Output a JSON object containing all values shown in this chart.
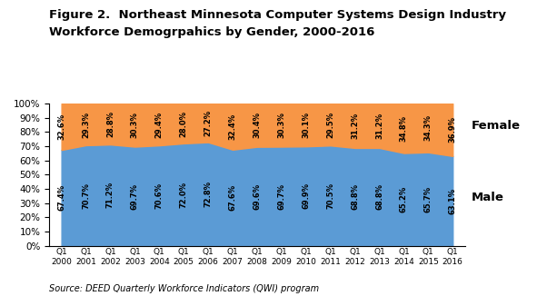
{
  "title_line1": "Figure 2.  Northeast Minnesota Computer Systems Design Industry",
  "title_line2": "Workforce Demogrpahics by Gender, 2000-2016",
  "source": "Source: DEED Quarterly Workforce Indicators (QWI) program",
  "years": [
    "Q1\n2000",
    "Q1\n2001",
    "Q1\n2002",
    "Q1\n2003",
    "Q1\n2004",
    "Q1\n2005",
    "Q1\n2006",
    "Q1\n2007",
    "Q1\n2008",
    "Q1\n2009",
    "Q1\n2010",
    "Q1\n2011",
    "Q1\n2012",
    "Q1\n2013",
    "Q1\n2014",
    "Q1\n2015",
    "Q1\n2016"
  ],
  "male_pct": [
    67.4,
    70.7,
    71.2,
    69.7,
    70.6,
    72.0,
    72.8,
    67.6,
    69.6,
    69.7,
    69.9,
    70.5,
    68.8,
    68.8,
    65.2,
    65.7,
    63.1
  ],
  "female_pct": [
    32.6,
    29.3,
    28.8,
    30.3,
    29.4,
    28.0,
    27.2,
    32.4,
    30.4,
    30.3,
    30.1,
    29.5,
    31.2,
    31.2,
    34.8,
    34.3,
    36.9
  ],
  "male_labels": [
    "67.4%",
    "70.7%",
    "71.2%",
    "69.7%",
    "70.6%",
    "72.0%",
    "72.8%",
    "67.6%",
    "69.6%",
    "69.7%",
    "69.9%",
    "70.5%",
    "68.8%",
    "68.8%",
    "65.2%",
    "65.7%",
    "63.1%"
  ],
  "female_labels": [
    "32.6%",
    "29.3%",
    "28.8%",
    "30.3%",
    "29.4%",
    "28.0%",
    "27.2%",
    "32.4%",
    "30.4%",
    "30.3%",
    "30.1%",
    "29.5%",
    "31.2%",
    "31.2%",
    "34.8%",
    "34.3%",
    "36.9%"
  ],
  "male_color": "#5B9BD5",
  "female_color": "#F79646",
  "background_color": "#FFFFFF",
  "label_fontsize": 6.0,
  "title_fontsize": 9.5,
  "legend_fontsize": 9.5,
  "source_fontsize": 7.0,
  "ylim": [
    0,
    100
  ]
}
